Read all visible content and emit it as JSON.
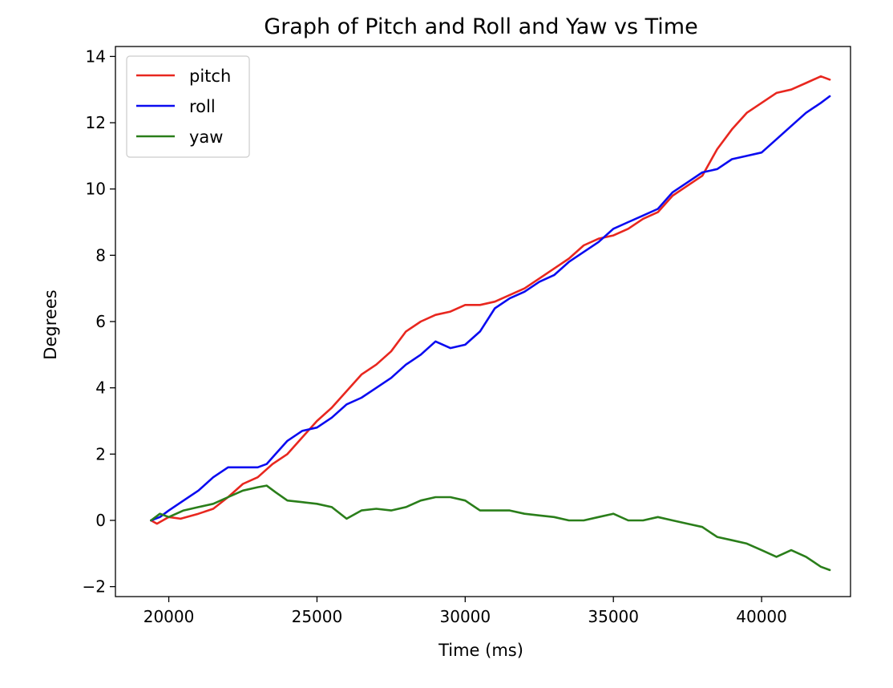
{
  "chart_data": {
    "type": "line",
    "title": "Graph of Pitch and Roll and Yaw vs Time",
    "xlabel": "Time (ms)",
    "ylabel": "Degrees",
    "xlim": [
      18200,
      43000
    ],
    "ylim": [
      -2.3,
      14.3
    ],
    "xticks": [
      20000,
      25000,
      30000,
      35000,
      40000
    ],
    "xtick_labels": [
      "20000",
      "25000",
      "30000",
      "35000",
      "40000"
    ],
    "yticks": [
      -2,
      0,
      2,
      4,
      6,
      8,
      10,
      12,
      14
    ],
    "ytick_labels": [
      "−2",
      "0",
      "2",
      "4",
      "6",
      "8",
      "10",
      "12",
      "14"
    ],
    "grid": false,
    "legend_position": "top-left",
    "series": [
      {
        "name": "pitch",
        "color": "#e8271f",
        "x": [
          19400,
          19600,
          20000,
          20400,
          21000,
          21500,
          22000,
          22500,
          23000,
          23500,
          24000,
          24500,
          25000,
          25500,
          26000,
          26500,
          27000,
          27500,
          28000,
          28500,
          29000,
          29500,
          30000,
          30500,
          31000,
          31500,
          32000,
          32500,
          33000,
          33500,
          34000,
          34500,
          35000,
          35500,
          36000,
          36500,
          37000,
          37500,
          38000,
          38500,
          39000,
          39500,
          40000,
          40500,
          41000,
          41500,
          42000,
          42300
        ],
        "values": [
          0.0,
          -0.1,
          0.1,
          0.05,
          0.2,
          0.35,
          0.7,
          1.1,
          1.3,
          1.7,
          2.0,
          2.5,
          3.0,
          3.4,
          3.9,
          4.4,
          4.7,
          5.1,
          5.7,
          6.0,
          6.2,
          6.3,
          6.5,
          6.5,
          6.6,
          6.8,
          7.0,
          7.3,
          7.6,
          7.9,
          8.3,
          8.5,
          8.6,
          8.8,
          9.1,
          9.3,
          9.8,
          10.1,
          10.4,
          11.2,
          11.8,
          12.3,
          12.6,
          12.9,
          13.0,
          13.2,
          13.4,
          13.3
        ]
      },
      {
        "name": "roll",
        "color": "#0b0bf0",
        "x": [
          19400,
          19700,
          20000,
          20500,
          21000,
          21500,
          22000,
          22500,
          23000,
          23300,
          23600,
          24000,
          24500,
          25000,
          25500,
          26000,
          26500,
          27000,
          27500,
          28000,
          28500,
          29000,
          29500,
          30000,
          30500,
          31000,
          31500,
          32000,
          32500,
          33000,
          33500,
          34000,
          34500,
          35000,
          35500,
          36000,
          36500,
          37000,
          37500,
          38000,
          38500,
          39000,
          39500,
          40000,
          40500,
          41000,
          41500,
          42000,
          42300
        ],
        "values": [
          0.0,
          0.1,
          0.3,
          0.6,
          0.9,
          1.3,
          1.6,
          1.6,
          1.6,
          1.7,
          2.0,
          2.4,
          2.7,
          2.8,
          3.1,
          3.5,
          3.7,
          4.0,
          4.3,
          4.7,
          5.0,
          5.4,
          5.2,
          5.3,
          5.7,
          6.4,
          6.7,
          6.9,
          7.2,
          7.4,
          7.8,
          8.1,
          8.4,
          8.8,
          9.0,
          9.2,
          9.4,
          9.9,
          10.2,
          10.5,
          10.6,
          10.9,
          11.0,
          11.1,
          11.5,
          11.9,
          12.3,
          12.6,
          12.8
        ]
      },
      {
        "name": "yaw",
        "color": "#2a7e1a",
        "x": [
          19400,
          19700,
          20000,
          20500,
          21000,
          21500,
          22000,
          22500,
          23000,
          23300,
          23600,
          24000,
          24500,
          25000,
          25500,
          26000,
          26500,
          27000,
          27500,
          28000,
          28500,
          29000,
          29500,
          30000,
          30500,
          31000,
          31500,
          32000,
          32500,
          33000,
          33500,
          34000,
          34500,
          35000,
          35500,
          36000,
          36500,
          37000,
          37500,
          38000,
          38500,
          39000,
          39500,
          40000,
          40500,
          41000,
          41500,
          42000,
          42300
        ],
        "values": [
          0.0,
          0.2,
          0.1,
          0.3,
          0.4,
          0.5,
          0.7,
          0.9,
          1.0,
          1.05,
          0.85,
          0.6,
          0.55,
          0.5,
          0.4,
          0.05,
          0.3,
          0.35,
          0.3,
          0.4,
          0.6,
          0.7,
          0.7,
          0.6,
          0.3,
          0.3,
          0.3,
          0.2,
          0.15,
          0.1,
          0.0,
          0.0,
          0.1,
          0.2,
          0.0,
          0.0,
          0.1,
          0.0,
          -0.1,
          -0.2,
          -0.5,
          -0.6,
          -0.7,
          -0.9,
          -1.1,
          -0.9,
          -1.1,
          -1.4,
          -1.5
        ]
      }
    ]
  }
}
